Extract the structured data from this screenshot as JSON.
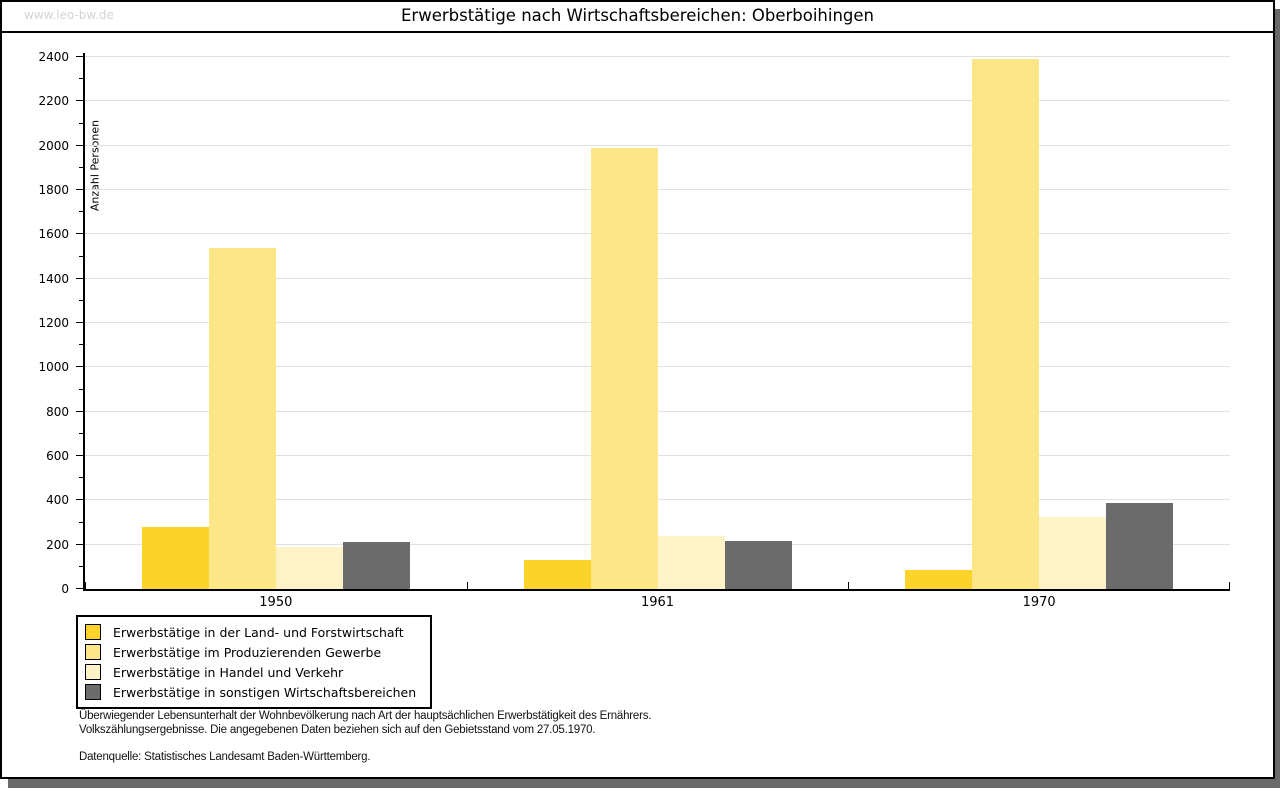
{
  "watermark": "www.leo-bw.de",
  "title": "Erwerbstätige nach Wirtschaftsbereichen: Oberboihingen",
  "chart_data": {
    "type": "bar",
    "title": "Erwerbstätige nach Wirtschaftsbereichen: Oberboihingen",
    "xlabel": "",
    "ylabel": "Anzahl Personen",
    "categories": [
      "1950",
      "1961",
      "1970"
    ],
    "series": [
      {
        "name": "Erwerbstätige in der Land- und Forstwirtschaft",
        "color": "#FCD32B",
        "values": [
          280,
          130,
          85
        ]
      },
      {
        "name": "Erwerbstätige im Produzierenden Gewerbe",
        "color": "#FCE687",
        "values": [
          1540,
          1990,
          2390
        ]
      },
      {
        "name": "Erwerbstätige in Handel und Verkehr",
        "color": "#FDF3C6",
        "values": [
          190,
          240,
          325
        ]
      },
      {
        "name": "Erwerbstätige in sonstigen Wirtschaftsbereichen",
        "color": "#6B6B6B",
        "values": [
          210,
          215,
          390
        ]
      }
    ],
    "ylim": [
      0,
      2400
    ],
    "ytick_major": 200,
    "ytick_minor": 100,
    "y_tick_labels": [
      0,
      200,
      400,
      600,
      800,
      1000,
      1200,
      1400,
      1600,
      1800,
      2000,
      2200,
      2400
    ],
    "grid": true,
    "gridline_color": "#E0E0E0",
    "legend_position": "bottom-left"
  },
  "footnotes": {
    "line1": "Überwiegender Lebensunterhalt der Wohnbevölkerung nach Art der hauptsächlichen Erwerbstätigkeit des Ernährers.",
    "line2": "Volkszählungsergebnisse. Die angegebenen Daten beziehen sich auf den Gebietsstand vom 27.05.1970.",
    "source": "Datenquelle: Statistisches Landesamt Baden-Württemberg."
  }
}
